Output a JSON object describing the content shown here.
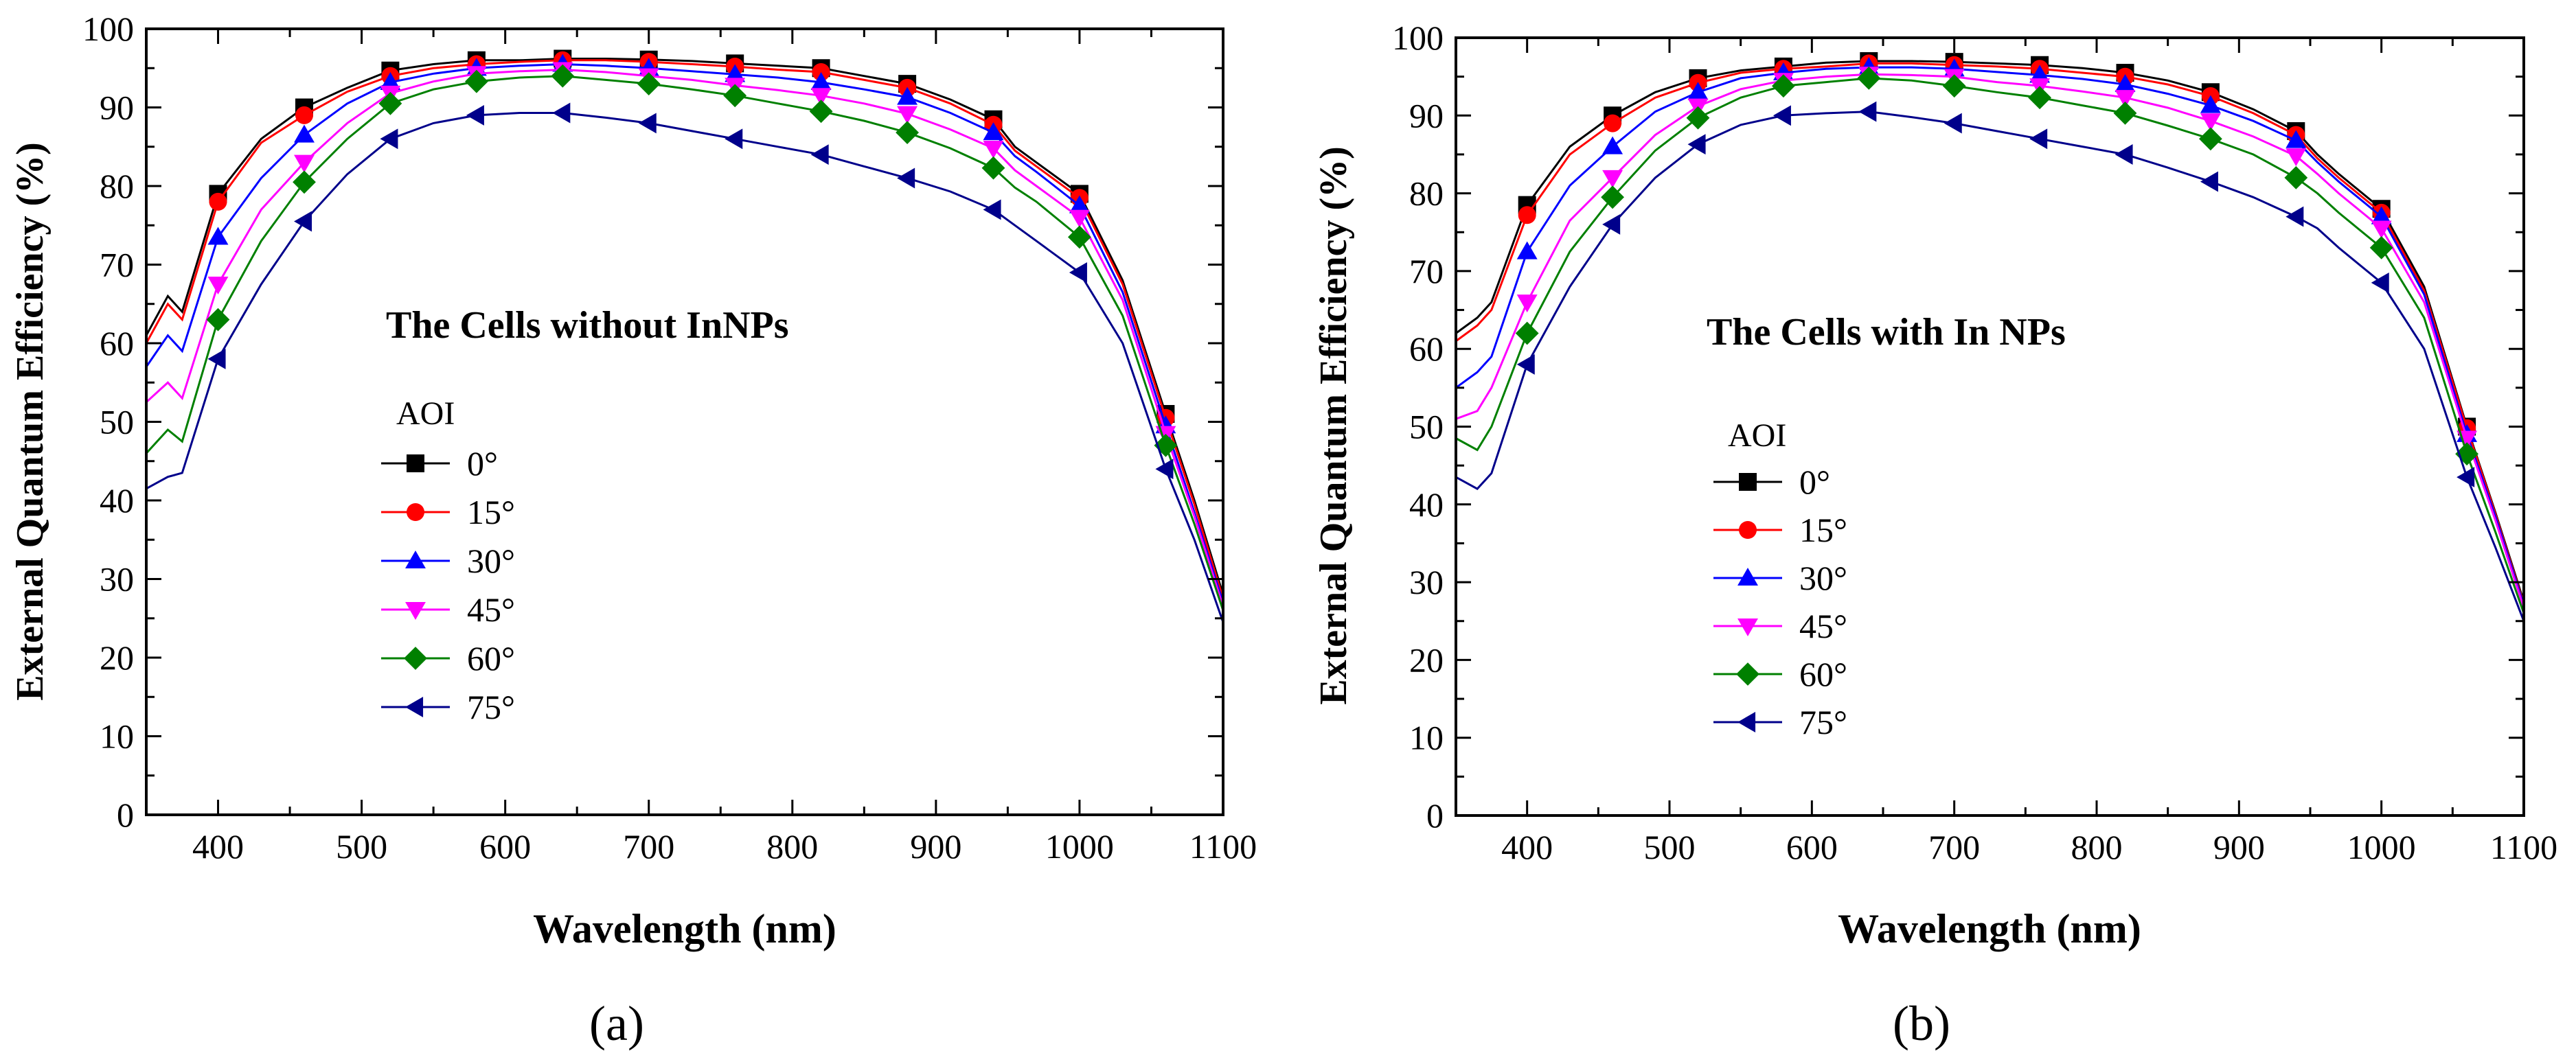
{
  "chart_data": [
    {
      "type": "line",
      "panel_label": "(a)",
      "title": "The Cells without InNPs",
      "xlabel": "Wavelength (nm)",
      "ylabel": "External Quantum Efficiency (%)",
      "xlim": [
        350,
        1100
      ],
      "ylim": [
        0,
        100
      ],
      "xticks": [
        400,
        500,
        600,
        700,
        800,
        900,
        1000,
        1100
      ],
      "yticks": [
        0,
        10,
        20,
        30,
        40,
        50,
        60,
        70,
        80,
        90,
        100
      ],
      "legend_title": "AOI",
      "marker_x": [
        400,
        460,
        520,
        580,
        640,
        700,
        760,
        820,
        880,
        940,
        1000,
        1060
      ],
      "series": [
        {
          "name": "0°",
          "color": "#000000",
          "marker": "square",
          "x": [
            350,
            365,
            375,
            400,
            430,
            460,
            490,
            520,
            550,
            580,
            610,
            640,
            670,
            700,
            730,
            760,
            790,
            820,
            850,
            880,
            910,
            940,
            955,
            970,
            1000,
            1030,
            1060,
            1080,
            1100
          ],
          "y": [
            61,
            66,
            64,
            79,
            86,
            90,
            92.5,
            94.7,
            95.5,
            96,
            96,
            96.2,
            96.2,
            96.1,
            95.9,
            95.6,
            95.3,
            95,
            94,
            93,
            91,
            88.5,
            85,
            83,
            79,
            68,
            51,
            40,
            28
          ]
        },
        {
          "name": "15°",
          "color": "#ff0000",
          "marker": "circle",
          "x": [
            350,
            365,
            375,
            400,
            430,
            460,
            490,
            520,
            550,
            580,
            610,
            640,
            670,
            700,
            730,
            760,
            790,
            820,
            850,
            880,
            910,
            940,
            955,
            970,
            1000,
            1030,
            1060,
            1080,
            1100
          ],
          "y": [
            60,
            65,
            63,
            78,
            85.5,
            89,
            92,
            94,
            95,
            95.5,
            95.8,
            96,
            96,
            95.8,
            95.5,
            95.2,
            94.8,
            94.5,
            93.5,
            92.5,
            90.5,
            87.8,
            84.5,
            82.5,
            78.5,
            67.5,
            50.5,
            39.5,
            27.5
          ]
        },
        {
          "name": "30°",
          "color": "#0000ff",
          "marker": "up",
          "x": [
            350,
            365,
            375,
            400,
            430,
            460,
            490,
            520,
            550,
            580,
            610,
            640,
            670,
            700,
            730,
            760,
            790,
            820,
            850,
            880,
            910,
            940,
            955,
            970,
            1000,
            1030,
            1060,
            1080,
            1100
          ],
          "y": [
            57,
            61,
            59,
            73.5,
            81,
            86.5,
            90.5,
            93.2,
            94.3,
            95,
            95.3,
            95.5,
            95.3,
            95,
            94.6,
            94.2,
            93.8,
            93.2,
            92.3,
            91.3,
            89.3,
            86.8,
            83.8,
            81.8,
            77.5,
            66.5,
            49.5,
            38.5,
            27
          ]
        },
        {
          "name": "45°",
          "color": "#ff00ff",
          "marker": "down",
          "x": [
            350,
            365,
            375,
            400,
            430,
            460,
            490,
            520,
            550,
            580,
            610,
            640,
            670,
            700,
            730,
            760,
            790,
            820,
            850,
            880,
            910,
            940,
            955,
            970,
            1000,
            1030,
            1060,
            1080,
            1100
          ],
          "y": [
            52.5,
            55,
            53,
            67.5,
            77,
            83,
            88,
            91.8,
            93.3,
            94.3,
            94.6,
            94.8,
            94.5,
            94,
            93.5,
            92.8,
            92.2,
            91.5,
            90.5,
            89.2,
            87.2,
            84.8,
            82,
            80,
            76,
            65.5,
            48.5,
            38,
            26.5
          ]
        },
        {
          "name": "60°",
          "color": "#008000",
          "marker": "diamond",
          "x": [
            350,
            365,
            375,
            400,
            430,
            460,
            490,
            520,
            550,
            580,
            610,
            640,
            670,
            700,
            730,
            760,
            790,
            820,
            850,
            880,
            910,
            940,
            955,
            970,
            1000,
            1030,
            1060,
            1080,
            1100
          ],
          "y": [
            46,
            49,
            47.5,
            63,
            73,
            80.5,
            86,
            90.5,
            92.3,
            93.3,
            93.8,
            94,
            93.5,
            93,
            92.3,
            91.5,
            90.5,
            89.5,
            88.3,
            86.8,
            84.8,
            82.3,
            79.8,
            78,
            73.5,
            63.5,
            47,
            37,
            26
          ]
        },
        {
          "name": "75°",
          "color": "#00008b",
          "marker": "left",
          "x": [
            350,
            365,
            375,
            400,
            430,
            460,
            490,
            520,
            550,
            580,
            610,
            640,
            670,
            700,
            730,
            760,
            790,
            820,
            850,
            880,
            910,
            940,
            955,
            970,
            1000,
            1030,
            1060,
            1080,
            1100
          ],
          "y": [
            41.5,
            43,
            43.5,
            58,
            67.5,
            75.5,
            81.5,
            86,
            88,
            89,
            89.3,
            89.3,
            88.7,
            88,
            87,
            86,
            85,
            84,
            82.5,
            81,
            79.3,
            77,
            75,
            73,
            69,
            60,
            44,
            35,
            24.5
          ]
        }
      ]
    },
    {
      "type": "line",
      "panel_label": "(b)",
      "title": "The Cells with In NPs",
      "xlabel": "Wavelength (nm)",
      "ylabel": "External Quantum Efficiency (%)",
      "xlim": [
        350,
        1100
      ],
      "ylim": [
        0,
        100
      ],
      "xticks": [
        400,
        500,
        600,
        700,
        800,
        900,
        1000,
        1100
      ],
      "yticks": [
        0,
        10,
        20,
        30,
        40,
        50,
        60,
        70,
        80,
        90,
        100
      ],
      "legend_title": "AOI",
      "marker_x": [
        400,
        460,
        520,
        580,
        640,
        700,
        760,
        820,
        880,
        940,
        1000,
        1060
      ],
      "series": [
        {
          "name": "0°",
          "color": "#000000",
          "marker": "square",
          "x": [
            350,
            365,
            375,
            400,
            430,
            460,
            490,
            520,
            550,
            580,
            610,
            640,
            670,
            700,
            730,
            760,
            790,
            820,
            850,
            880,
            910,
            940,
            955,
            970,
            1000,
            1030,
            1060,
            1080,
            1100
          ],
          "y": [
            62,
            64,
            66,
            78.5,
            86,
            90,
            93,
            94.8,
            95.8,
            96.3,
            96.8,
            97,
            97,
            96.9,
            96.7,
            96.5,
            96.1,
            95.5,
            94.5,
            93,
            90.8,
            88,
            85,
            82.5,
            78,
            68,
            50,
            39,
            27.5
          ]
        },
        {
          "name": "15°",
          "color": "#ff0000",
          "marker": "circle",
          "x": [
            350,
            365,
            375,
            400,
            430,
            460,
            490,
            520,
            550,
            580,
            610,
            640,
            670,
            700,
            730,
            760,
            790,
            820,
            850,
            880,
            910,
            940,
            955,
            970,
            1000,
            1030,
            1060,
            1080,
            1100
          ],
          "y": [
            61,
            63,
            65,
            77.2,
            85,
            89,
            92.3,
            94.2,
            95.5,
            96,
            96.3,
            96.7,
            96.7,
            96.5,
            96.3,
            96,
            95.5,
            95,
            94,
            92.5,
            90.3,
            87.5,
            84.5,
            82,
            77.5,
            67.5,
            49.8,
            38.8,
            27.2
          ]
        },
        {
          "name": "30°",
          "color": "#0000ff",
          "marker": "up",
          "x": [
            350,
            365,
            375,
            400,
            430,
            460,
            490,
            520,
            550,
            580,
            610,
            640,
            670,
            700,
            730,
            760,
            790,
            820,
            850,
            880,
            910,
            940,
            955,
            970,
            1000,
            1030,
            1060,
            1080,
            1100
          ],
          "y": [
            55,
            57,
            59,
            72.5,
            81,
            86,
            90.5,
            93,
            94.8,
            95.5,
            96,
            96.2,
            96.2,
            96,
            95.6,
            95.2,
            94.7,
            94,
            92.8,
            91.3,
            89.3,
            86.8,
            84,
            81.5,
            77,
            67,
            49,
            38.5,
            27
          ]
        },
        {
          "name": "45°",
          "color": "#ff00ff",
          "marker": "down",
          "x": [
            350,
            365,
            375,
            400,
            430,
            460,
            490,
            520,
            550,
            580,
            610,
            640,
            670,
            700,
            730,
            760,
            790,
            820,
            850,
            880,
            910,
            940,
            955,
            970,
            1000,
            1030,
            1060,
            1080,
            1100
          ],
          "y": [
            51,
            52,
            55,
            66,
            76.5,
            82,
            87.5,
            91.2,
            93.4,
            94.5,
            95,
            95.3,
            95.2,
            95,
            94.3,
            93.8,
            93.1,
            92.3,
            91,
            89.3,
            87.3,
            84.8,
            82.5,
            80,
            75.5,
            66,
            48.5,
            38,
            26.7
          ]
        },
        {
          "name": "60°",
          "color": "#008000",
          "marker": "diamond",
          "x": [
            350,
            365,
            375,
            400,
            430,
            460,
            490,
            520,
            550,
            580,
            610,
            640,
            670,
            700,
            730,
            760,
            790,
            820,
            850,
            880,
            910,
            940,
            955,
            970,
            1000,
            1030,
            1060,
            1080,
            1100
          ],
          "y": [
            48.5,
            47,
            50,
            62,
            72.5,
            79.5,
            85.5,
            89.7,
            92.3,
            93.8,
            94.3,
            94.8,
            94.5,
            93.8,
            93,
            92.3,
            91.3,
            90.3,
            88.7,
            87,
            85,
            82,
            80,
            77.5,
            73,
            64,
            46.5,
            36.5,
            26
          ]
        },
        {
          "name": "75°",
          "color": "#00008b",
          "marker": "left",
          "x": [
            350,
            365,
            375,
            400,
            430,
            460,
            490,
            520,
            550,
            580,
            610,
            640,
            670,
            700,
            730,
            760,
            790,
            820,
            850,
            880,
            910,
            940,
            955,
            970,
            1000,
            1030,
            1060,
            1080,
            1100
          ],
          "y": [
            43.5,
            42,
            44,
            58,
            68,
            76,
            82,
            86.3,
            88.8,
            90,
            90.3,
            90.5,
            89.8,
            89,
            88,
            87,
            86,
            85,
            83.3,
            81.5,
            79.5,
            77,
            75.5,
            73,
            68.5,
            60,
            43.5,
            34.5,
            25
          ]
        }
      ]
    }
  ]
}
